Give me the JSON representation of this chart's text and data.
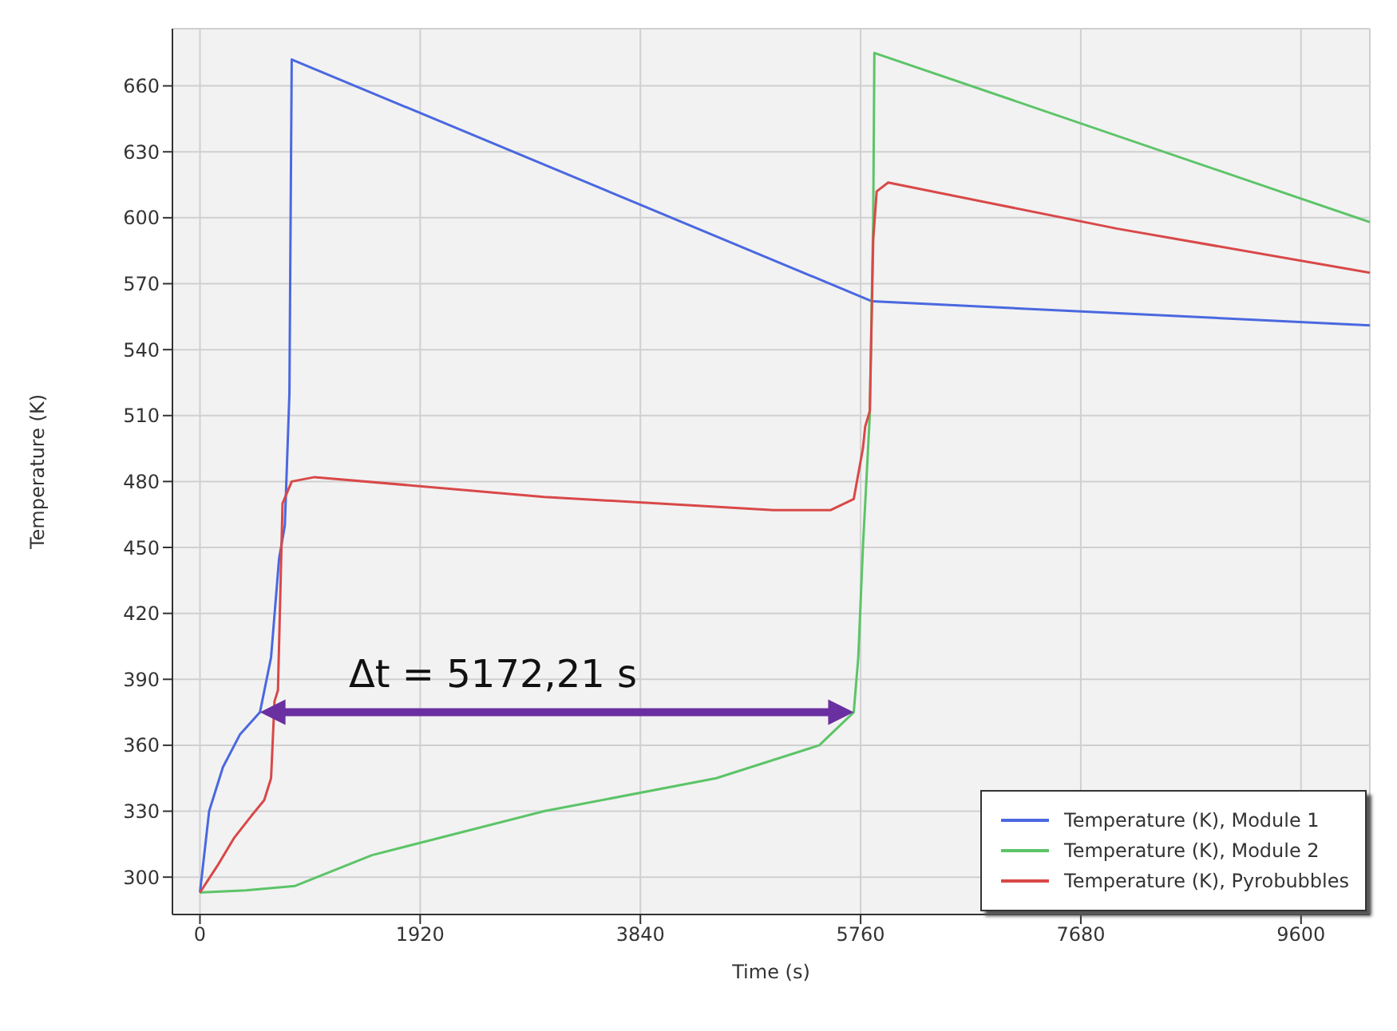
{
  "chart_data": {
    "type": "line",
    "xlabel": "Time (s)",
    "ylabel": "Temperature (K)",
    "xlim": [
      -240,
      10200
    ],
    "ylim": [
      283,
      686
    ],
    "xticks": [
      0,
      1920,
      3840,
      5760,
      7680,
      9600
    ],
    "yticks": [
      300,
      330,
      360,
      390,
      420,
      450,
      480,
      510,
      540,
      570,
      600,
      630,
      660
    ],
    "grid": true,
    "legend": "bottom right",
    "line_style": "solid",
    "marker": "none",
    "annotations": [
      "Δt = 5172,21 s"
    ],
    "series": [
      {
        "name": "Temperature (K), Module 1",
        "color": "#4a68e0",
        "x": [
          0,
          80,
          200,
          350,
          523,
          620,
          690,
          740,
          780,
          800,
          5860,
          10200
        ],
        "values": [
          293,
          330,
          350,
          365,
          375,
          400,
          445,
          460,
          520,
          672,
          562,
          551
        ]
      },
      {
        "name": "Temperature (K), Module 2",
        "color": "#5cc468",
        "x": [
          0,
          400,
          830,
          1500,
          3000,
          4500,
          5400,
          5700,
          5740,
          5780,
          5840,
          5870,
          5880,
          10200
        ],
        "values": [
          293,
          294,
          296,
          310,
          330,
          345,
          360,
          375,
          400,
          450,
          510,
          600,
          675,
          598
        ]
      },
      {
        "name": "Temperature (K), Pyrobubbles",
        "color": "#d94848",
        "x": [
          0,
          150,
          300,
          450,
          560,
          620,
          650,
          680,
          720,
          800,
          1000,
          3000,
          5000,
          5500,
          5700,
          5780,
          5800,
          5840,
          5870,
          5900,
          6000,
          8000,
          10200
        ],
        "values": [
          293,
          305,
          318,
          328,
          335,
          345,
          380,
          385,
          470,
          480,
          482,
          473,
          467,
          467,
          472,
          495,
          505,
          512,
          590,
          612,
          616,
          595,
          575
        ]
      }
    ]
  }
}
